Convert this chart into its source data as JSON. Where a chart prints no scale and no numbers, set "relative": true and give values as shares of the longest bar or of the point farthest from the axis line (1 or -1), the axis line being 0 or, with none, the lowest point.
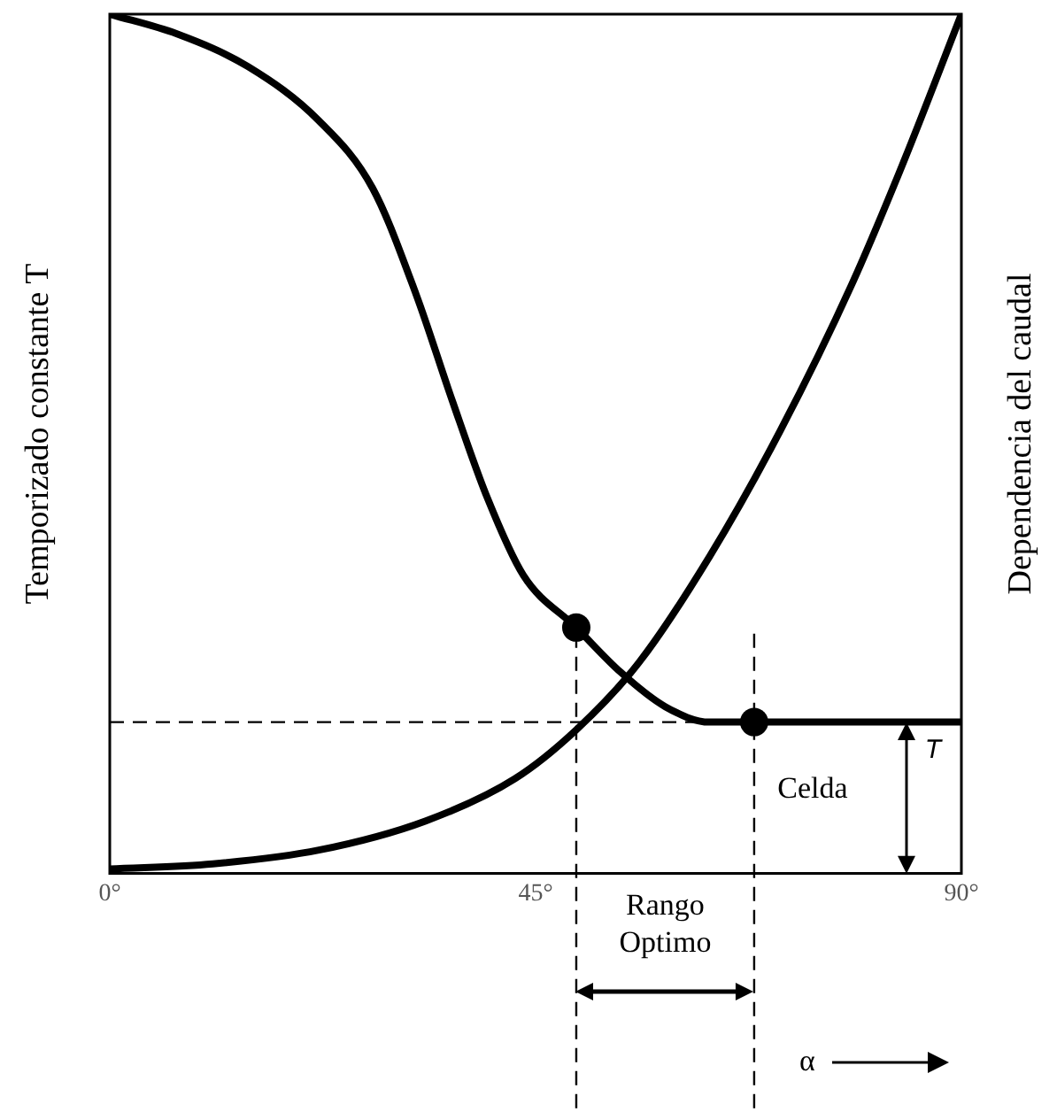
{
  "chart_data": {
    "type": "line",
    "relative": true,
    "ylabel": "Temporizado constante T",
    "y2label": "Dependencia del caudal",
    "xlim": [
      0,
      90
    ],
    "xticks": [
      {
        "value": 0,
        "label": "0°"
      },
      {
        "value": 45,
        "label": "45°"
      },
      {
        "value": 90,
        "label": "90°"
      }
    ],
    "grid": false,
    "legend": false,
    "marker": "none",
    "line_style": "solid",
    "series": [
      {
        "type": "line",
        "color": "#000000",
        "x": [
          0,
          7.1,
          14.6,
          22.1,
          27.8,
          32.4,
          36.2,
          39.9,
          43.7,
          49.3,
          54,
          58.7,
          63.4,
          68.1,
          90
        ],
        "values": [
          1,
          0.977,
          0.939,
          0.876,
          0.797,
          0.673,
          0.55,
          0.437,
          0.347,
          0.286,
          0.234,
          0.194,
          0.176,
          0.176,
          0.176
        ]
      },
      {
        "type": "line",
        "color": "#000000",
        "x": [
          0,
          10.9,
          22.1,
          33.4,
          42.8,
          49.3,
          55.9,
          63.4,
          70.9,
          78.4,
          84,
          90
        ],
        "values": [
          0.005,
          0.011,
          0.027,
          0.061,
          0.11,
          0.167,
          0.245,
          0.369,
          0.516,
          0.685,
          0.831,
          1
        ]
      },
      {
        "type": "scatter",
        "color": "#000000",
        "marker": "circle",
        "x": [
          49.3,
          68.1
        ],
        "values": [
          0.286,
          0.176
        ]
      }
    ],
    "ref_lines": [
      {
        "axis": "y",
        "value": 0.176,
        "line_style": "dashed"
      },
      {
        "axis": "x",
        "value": 49.3,
        "line_style": "dashed"
      },
      {
        "axis": "x",
        "value": 68.1,
        "line_style": "dashed"
      }
    ],
    "annotations": [
      "Rango Optimo",
      "Celda",
      "T",
      "α"
    ]
  }
}
